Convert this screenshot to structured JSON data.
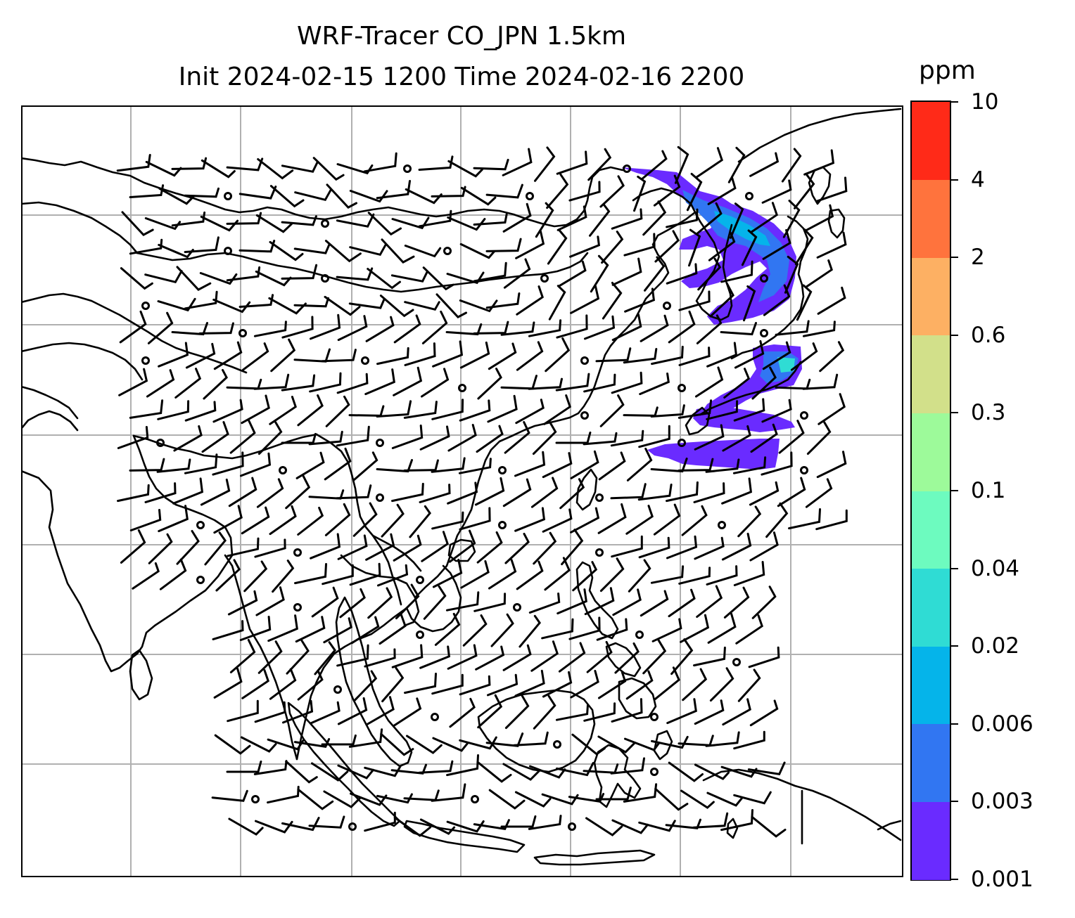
{
  "title": {
    "line1": "WRF-Tracer CO_JPN 1.5km",
    "line2": "Init 2024-02-15 1200 Time 2024-02-16 2200"
  },
  "colorbar": {
    "unit": "ppm",
    "ticks": [
      "0.001",
      "0.003",
      "0.006",
      "0.02",
      "0.04",
      "0.1",
      "0.3",
      "0.6",
      "2",
      "4",
      "10"
    ],
    "colors": [
      "#6a2bff",
      "#3176f2",
      "#05b4ea",
      "#2fdcd4",
      "#6dfbbf",
      "#9dfa9a",
      "#d2e08a",
      "#fdb063",
      "#ff733d",
      "#ff2a18"
    ]
  },
  "map": {
    "region": "East and Southeast Asia",
    "features": [
      "coastlines",
      "lat-lon gridlines",
      "wind barbs",
      "CO tracer concentration field"
    ],
    "calm_marker": "circle",
    "plume_region": "Japan and surrounding seas"
  }
}
